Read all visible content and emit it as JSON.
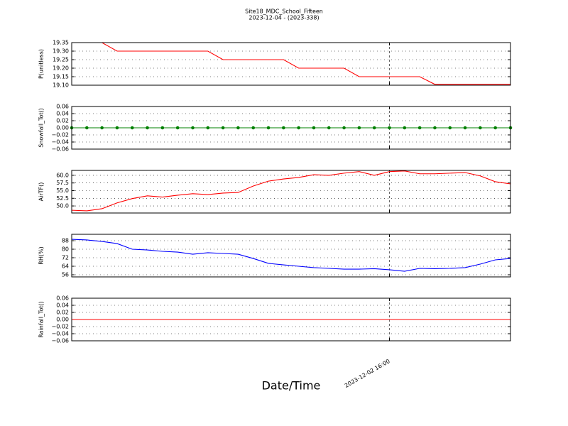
{
  "title": "Site18_MDC_School_Fifteen",
  "subtitle": "2023-12-04 - (2023-338)",
  "x_label": "Date/Time",
  "categories": [
    null,
    null,
    null,
    null,
    null,
    null,
    null,
    null,
    null,
    null,
    null,
    null,
    null,
    null,
    null,
    null,
    null,
    null,
    null,
    null,
    null,
    "2023-12-02 16:00",
    null,
    null,
    null,
    null,
    null,
    null,
    null,
    null
  ],
  "chart_data": [
    {
      "type": "line",
      "y_label": "P(unitless)",
      "series": [
        {
          "color": "#ff0000",
          "values": [
            19.35,
            19.35,
            19.35,
            19.3,
            19.3,
            19.3,
            19.3,
            19.3,
            19.3,
            19.3,
            19.25,
            19.25,
            19.25,
            19.25,
            19.25,
            19.2,
            19.2,
            19.2,
            19.2,
            19.15,
            19.15,
            19.15,
            19.15,
            19.15,
            19.105,
            19.105,
            19.105,
            19.105,
            19.105,
            19.105
          ]
        }
      ],
      "ylim": [
        19.1,
        19.35
      ],
      "yticks": [
        {
          "value": 19.1,
          "label": "19.10"
        },
        {
          "value": 19.15,
          "label": "19.15"
        },
        {
          "value": 19.2,
          "label": "19.20"
        },
        {
          "value": 19.25,
          "label": "19.25"
        },
        {
          "value": 19.3,
          "label": "19.30"
        },
        {
          "value": 19.35,
          "label": "19.35"
        }
      ],
      "grid": true
    },
    {
      "type": "line",
      "y_label": "Snowfall_Tot()",
      "marker": true,
      "series": [
        {
          "color": "#008000",
          "values": [
            0,
            0,
            0,
            0,
            0,
            0,
            0,
            0,
            0,
            0,
            0,
            0,
            0,
            0,
            0,
            0,
            0,
            0,
            0,
            0,
            0,
            0,
            0,
            0,
            0,
            0,
            0,
            0,
            0,
            0
          ]
        }
      ],
      "ylim": [
        -0.06,
        0.06
      ],
      "yticks": [
        {
          "value": -0.06,
          "label": "−0.06"
        },
        {
          "value": -0.04,
          "label": "−0.04"
        },
        {
          "value": -0.02,
          "label": "−0.02"
        },
        {
          "value": 0,
          "label": "0.00"
        },
        {
          "value": 0.02,
          "label": "0.02"
        },
        {
          "value": 0.04,
          "label": "0.04"
        },
        {
          "value": 0.06,
          "label": "0.06"
        }
      ],
      "grid": true
    },
    {
      "type": "line",
      "y_label": "AirTF()",
      "series": [
        {
          "color": "#ff0000",
          "values": [
            48.6,
            48.4,
            49.1,
            51.0,
            52.4,
            53.3,
            52.9,
            53.5,
            54.0,
            53.7,
            54.2,
            54.4,
            56.5,
            58.1,
            58.8,
            59.3,
            60.2,
            60.0,
            60.7,
            61.2,
            60.0,
            61.2,
            61.4,
            60.5,
            60.5,
            60.7,
            60.9,
            59.8,
            57.9,
            57.2
          ]
        }
      ],
      "ylim": [
        47.7,
        61.6
      ],
      "yticks": [
        {
          "value": 50,
          "label": "50.0"
        },
        {
          "value": 52.5,
          "label": "52.5"
        },
        {
          "value": 55,
          "label": "55.0"
        },
        {
          "value": 57.5,
          "label": "57.5"
        },
        {
          "value": 60,
          "label": "60.0"
        }
      ],
      "grid": true
    },
    {
      "type": "line",
      "y_label": "RH(%)",
      "series": [
        {
          "color": "#0000ff",
          "values": [
            89.3,
            88.7,
            87.3,
            85.3,
            80,
            79.3,
            78,
            77.3,
            75.3,
            76.7,
            76,
            75.3,
            71.3,
            66.7,
            65.3,
            64,
            62.7,
            62,
            61.3,
            61.3,
            61.7,
            60.7,
            59.3,
            62,
            61.7,
            62,
            62.7,
            66,
            70,
            71.3
          ]
        }
      ],
      "ylim": [
        54,
        94
      ],
      "yticks": [
        56,
        64,
        72,
        80,
        88
      ],
      "grid": true
    },
    {
      "type": "line",
      "y_label": "Rainfall_Tot()",
      "series": [
        {
          "color": "#ff0000",
          "values": [
            0,
            0,
            0,
            0,
            0,
            0,
            0,
            0,
            0,
            0,
            0,
            0,
            0,
            0,
            0,
            0,
            0,
            0,
            0,
            0,
            0,
            0,
            0,
            0,
            0,
            0,
            0,
            0,
            0,
            0
          ]
        }
      ],
      "ylim": [
        -0.06,
        0.06
      ],
      "yticks": [
        {
          "value": -0.06,
          "label": "−0.06"
        },
        {
          "value": -0.04,
          "label": "−0.04"
        },
        {
          "value": -0.02,
          "label": "−0.02"
        },
        {
          "value": 0,
          "label": "0.00"
        },
        {
          "value": 0.02,
          "label": "0.02"
        },
        {
          "value": 0.04,
          "label": "0.04"
        },
        {
          "value": 0.06,
          "label": "0.06"
        }
      ],
      "grid": true
    }
  ]
}
